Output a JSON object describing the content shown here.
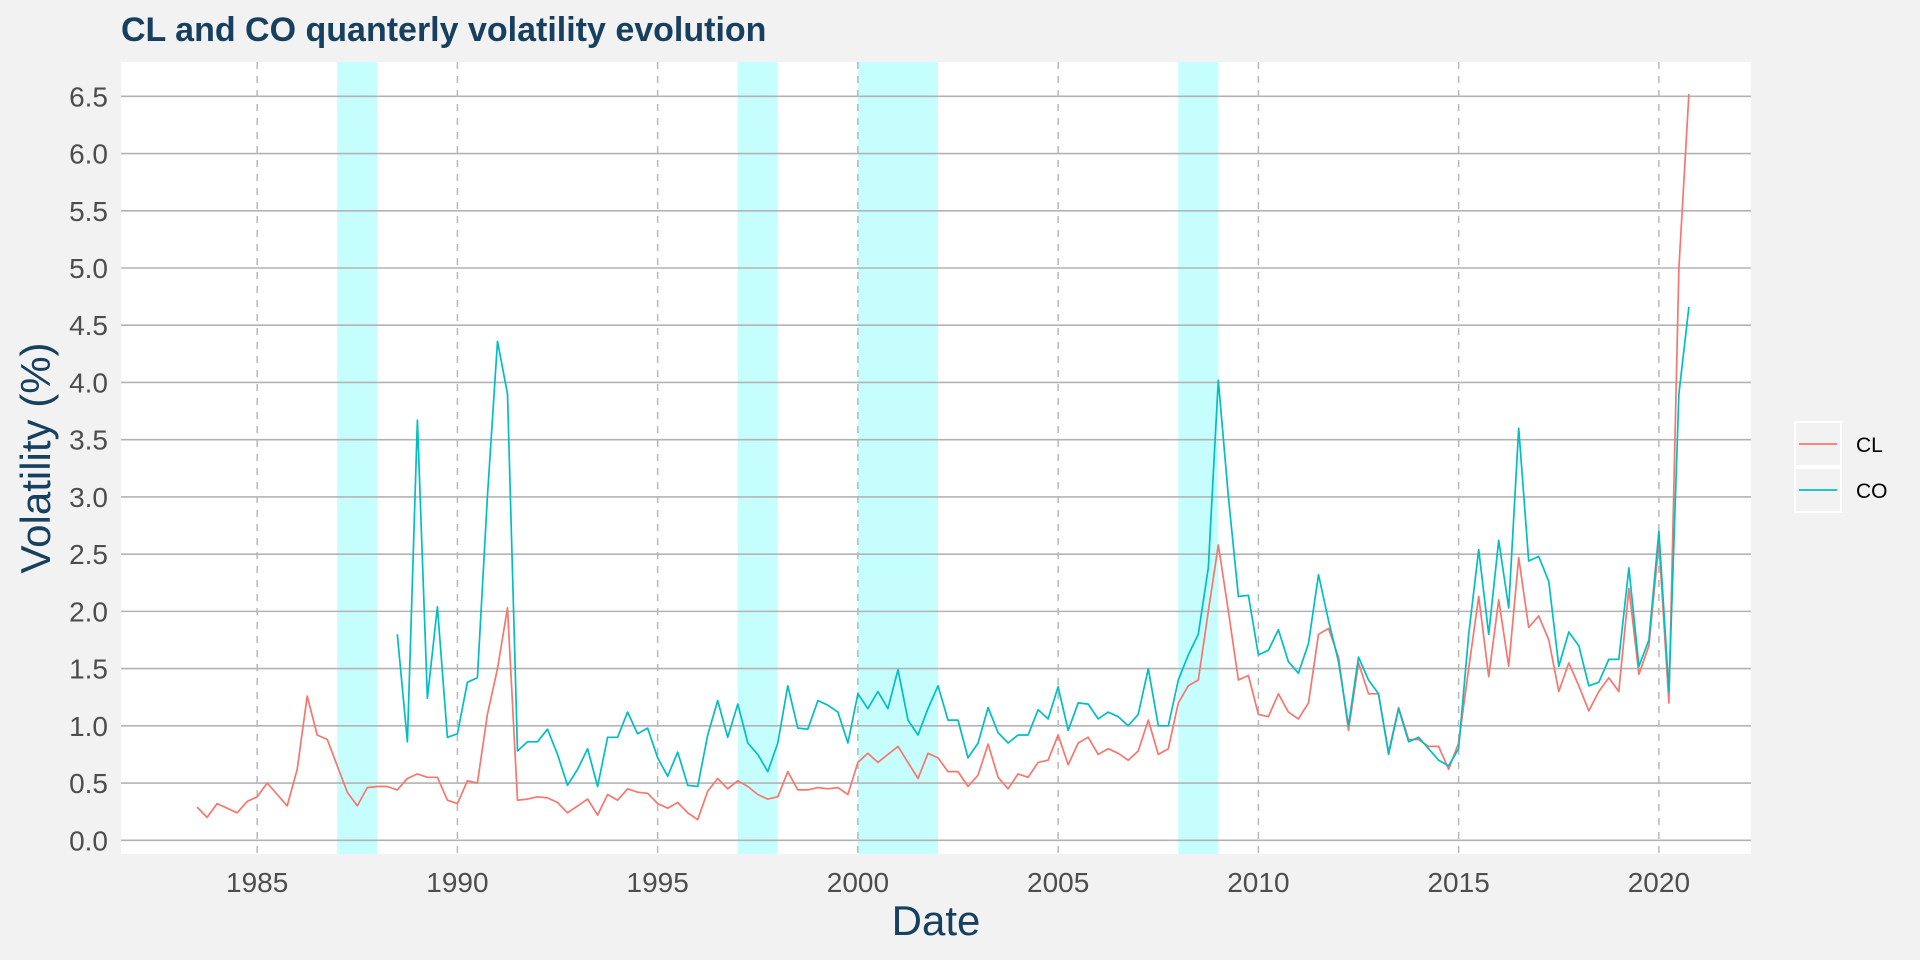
{
  "chart_data": {
    "type": "line",
    "title": "CL and CO quanterly volatility evolution",
    "xlabel": "Date",
    "ylabel": "Volatility (%)",
    "xlim": [
      1981.6,
      2022.3
    ],
    "ylim": [
      -0.12,
      6.8
    ],
    "x_ticks": [
      1985,
      1990,
      1995,
      2000,
      2005,
      2010,
      2015,
      2020
    ],
    "x_tick_labels": [
      "1985",
      "1990",
      "1995",
      "2000",
      "2005",
      "2010",
      "2015",
      "2020"
    ],
    "y_ticks": [
      0.0,
      0.5,
      1.0,
      1.5,
      2.0,
      2.5,
      3.0,
      3.5,
      4.0,
      4.5,
      5.0,
      5.5,
      6.0,
      6.5
    ],
    "y_tick_labels": [
      "0.0",
      "0.5",
      "1.0",
      "1.5",
      "2.0",
      "2.5",
      "3.0",
      "3.5",
      "4.0",
      "4.5",
      "5.0",
      "5.5",
      "6.0",
      "6.5"
    ],
    "grid": {
      "horizontal": true,
      "vertical_dashed_at_ticks": true
    },
    "shaded_periods": [
      [
        1987.0,
        1988.0
      ],
      [
        1997.0,
        1998.0
      ],
      [
        2000.0,
        2002.0
      ],
      [
        2008.0,
        2009.0
      ]
    ],
    "shade_color": "#c6fefe",
    "legend_position": "right",
    "series": [
      {
        "name": "CL",
        "color": "#f8766d",
        "points": [
          [
            1983.5,
            0.29
          ],
          [
            1983.75,
            0.2
          ],
          [
            1984.0,
            0.32
          ],
          [
            1984.25,
            0.28
          ],
          [
            1984.5,
            0.24
          ],
          [
            1984.75,
            0.34
          ],
          [
            1985.0,
            0.38
          ],
          [
            1985.25,
            0.5
          ],
          [
            1985.5,
            0.4
          ],
          [
            1985.75,
            0.3
          ],
          [
            1986.0,
            0.62
          ],
          [
            1986.25,
            1.26
          ],
          [
            1986.5,
            0.92
          ],
          [
            1986.75,
            0.88
          ],
          [
            1987.0,
            0.65
          ],
          [
            1987.25,
            0.42
          ],
          [
            1987.5,
            0.3
          ],
          [
            1987.75,
            0.46
          ],
          [
            1988.0,
            0.47
          ],
          [
            1988.25,
            0.47
          ],
          [
            1988.5,
            0.44
          ],
          [
            1988.75,
            0.54
          ],
          [
            1989.0,
            0.58
          ],
          [
            1989.25,
            0.55
          ],
          [
            1989.5,
            0.55
          ],
          [
            1989.75,
            0.35
          ],
          [
            1990.0,
            0.32
          ],
          [
            1990.25,
            0.52
          ],
          [
            1990.5,
            0.5
          ],
          [
            1990.75,
            1.1
          ],
          [
            1991.0,
            1.5
          ],
          [
            1991.25,
            2.03
          ],
          [
            1991.5,
            0.35
          ],
          [
            1991.75,
            0.36
          ],
          [
            1992.0,
            0.38
          ],
          [
            1992.25,
            0.37
          ],
          [
            1992.5,
            0.33
          ],
          [
            1992.75,
            0.24
          ],
          [
            1993.0,
            0.3
          ],
          [
            1993.25,
            0.36
          ],
          [
            1993.5,
            0.22
          ],
          [
            1993.75,
            0.4
          ],
          [
            1994.0,
            0.35
          ],
          [
            1994.25,
            0.45
          ],
          [
            1994.5,
            0.42
          ],
          [
            1994.75,
            0.41
          ],
          [
            1995.0,
            0.32
          ],
          [
            1995.25,
            0.28
          ],
          [
            1995.5,
            0.33
          ],
          [
            1995.75,
            0.24
          ],
          [
            1996.0,
            0.18
          ],
          [
            1996.25,
            0.43
          ],
          [
            1996.5,
            0.54
          ],
          [
            1996.75,
            0.45
          ],
          [
            1997.0,
            0.52
          ],
          [
            1997.25,
            0.47
          ],
          [
            1997.5,
            0.4
          ],
          [
            1997.75,
            0.36
          ],
          [
            1998.0,
            0.38
          ],
          [
            1998.25,
            0.6
          ],
          [
            1998.5,
            0.44
          ],
          [
            1998.75,
            0.44
          ],
          [
            1999.0,
            0.46
          ],
          [
            1999.25,
            0.45
          ],
          [
            1999.5,
            0.46
          ],
          [
            1999.75,
            0.4
          ],
          [
            2000.0,
            0.68
          ],
          [
            2000.25,
            0.76
          ],
          [
            2000.5,
            0.68
          ],
          [
            2000.75,
            0.75
          ],
          [
            2001.0,
            0.82
          ],
          [
            2001.25,
            0.68
          ],
          [
            2001.5,
            0.54
          ],
          [
            2001.75,
            0.76
          ],
          [
            2002.0,
            0.72
          ],
          [
            2002.25,
            0.6
          ],
          [
            2002.5,
            0.6
          ],
          [
            2002.75,
            0.47
          ],
          [
            2003.0,
            0.57
          ],
          [
            2003.25,
            0.84
          ],
          [
            2003.5,
            0.55
          ],
          [
            2003.75,
            0.45
          ],
          [
            2004.0,
            0.58
          ],
          [
            2004.25,
            0.55
          ],
          [
            2004.5,
            0.68
          ],
          [
            2004.75,
            0.7
          ],
          [
            2005.0,
            0.92
          ],
          [
            2005.25,
            0.66
          ],
          [
            2005.5,
            0.85
          ],
          [
            2005.75,
            0.9
          ],
          [
            2006.0,
            0.75
          ],
          [
            2006.25,
            0.8
          ],
          [
            2006.5,
            0.76
          ],
          [
            2006.75,
            0.7
          ],
          [
            2007.0,
            0.78
          ],
          [
            2007.25,
            1.05
          ],
          [
            2007.5,
            0.75
          ],
          [
            2007.75,
            0.8
          ],
          [
            2008.0,
            1.2
          ],
          [
            2008.25,
            1.35
          ],
          [
            2008.5,
            1.4
          ],
          [
            2008.75,
            2.0
          ],
          [
            2009.0,
            2.58
          ],
          [
            2009.25,
            2.0
          ],
          [
            2009.5,
            1.4
          ],
          [
            2009.75,
            1.44
          ],
          [
            2010.0,
            1.1
          ],
          [
            2010.25,
            1.08
          ],
          [
            2010.5,
            1.28
          ],
          [
            2010.75,
            1.12
          ],
          [
            2011.0,
            1.06
          ],
          [
            2011.25,
            1.2
          ],
          [
            2011.5,
            1.8
          ],
          [
            2011.75,
            1.85
          ],
          [
            2012.0,
            1.6
          ],
          [
            2012.25,
            0.96
          ],
          [
            2012.5,
            1.55
          ],
          [
            2012.75,
            1.28
          ],
          [
            2013.0,
            1.28
          ],
          [
            2013.25,
            0.77
          ],
          [
            2013.5,
            1.16
          ],
          [
            2013.75,
            0.88
          ],
          [
            2014.0,
            0.88
          ],
          [
            2014.25,
            0.82
          ],
          [
            2014.5,
            0.82
          ],
          [
            2014.75,
            0.62
          ],
          [
            2015.0,
            0.85
          ],
          [
            2015.25,
            1.5
          ],
          [
            2015.5,
            2.13
          ],
          [
            2015.75,
            1.43
          ],
          [
            2016.0,
            2.1
          ],
          [
            2016.25,
            1.52
          ],
          [
            2016.5,
            2.47
          ],
          [
            2016.75,
            1.86
          ],
          [
            2017.0,
            1.96
          ],
          [
            2017.25,
            1.75
          ],
          [
            2017.5,
            1.3
          ],
          [
            2017.75,
            1.55
          ],
          [
            2018.0,
            1.35
          ],
          [
            2018.25,
            1.13
          ],
          [
            2018.5,
            1.3
          ],
          [
            2018.75,
            1.42
          ],
          [
            2019.0,
            1.3
          ],
          [
            2019.25,
            2.2
          ],
          [
            2019.5,
            1.45
          ],
          [
            2019.75,
            1.7
          ],
          [
            2020.0,
            2.6
          ],
          [
            2020.25,
            1.2
          ],
          [
            2020.5,
            5.0
          ],
          [
            2020.75,
            6.52
          ]
        ]
      },
      {
        "name": "CO",
        "color": "#00bfc4",
        "points": [
          [
            1988.5,
            1.8
          ],
          [
            1988.75,
            0.86
          ],
          [
            1989.0,
            3.67
          ],
          [
            1989.25,
            1.24
          ],
          [
            1989.5,
            2.04
          ],
          [
            1989.75,
            0.9
          ],
          [
            1990.0,
            0.93
          ],
          [
            1990.25,
            1.38
          ],
          [
            1990.5,
            1.42
          ],
          [
            1990.75,
            3.0
          ],
          [
            1991.0,
            4.36
          ],
          [
            1991.25,
            3.9
          ],
          [
            1991.5,
            0.78
          ],
          [
            1991.75,
            0.86
          ],
          [
            1992.0,
            0.86
          ],
          [
            1992.25,
            0.97
          ],
          [
            1992.5,
            0.75
          ],
          [
            1992.75,
            0.48
          ],
          [
            1993.0,
            0.62
          ],
          [
            1993.25,
            0.8
          ],
          [
            1993.5,
            0.47
          ],
          [
            1993.75,
            0.9
          ],
          [
            1994.0,
            0.9
          ],
          [
            1994.25,
            1.12
          ],
          [
            1994.5,
            0.93
          ],
          [
            1994.75,
            0.98
          ],
          [
            1995.0,
            0.72
          ],
          [
            1995.25,
            0.56
          ],
          [
            1995.5,
            0.77
          ],
          [
            1995.75,
            0.48
          ],
          [
            1996.0,
            0.47
          ],
          [
            1996.25,
            0.92
          ],
          [
            1996.5,
            1.22
          ],
          [
            1996.75,
            0.9
          ],
          [
            1997.0,
            1.19
          ],
          [
            1997.25,
            0.85
          ],
          [
            1997.5,
            0.75
          ],
          [
            1997.75,
            0.6
          ],
          [
            1998.0,
            0.85
          ],
          [
            1998.25,
            1.35
          ],
          [
            1998.5,
            0.98
          ],
          [
            1998.75,
            0.97
          ],
          [
            1999.0,
            1.22
          ],
          [
            1999.25,
            1.18
          ],
          [
            1999.5,
            1.12
          ],
          [
            1999.75,
            0.85
          ],
          [
            2000.0,
            1.28
          ],
          [
            2000.25,
            1.15
          ],
          [
            2000.5,
            1.3
          ],
          [
            2000.75,
            1.15
          ],
          [
            2001.0,
            1.49
          ],
          [
            2001.25,
            1.05
          ],
          [
            2001.5,
            0.92
          ],
          [
            2001.75,
            1.15
          ],
          [
            2002.0,
            1.35
          ],
          [
            2002.25,
            1.05
          ],
          [
            2002.5,
            1.05
          ],
          [
            2002.75,
            0.72
          ],
          [
            2003.0,
            0.85
          ],
          [
            2003.25,
            1.16
          ],
          [
            2003.5,
            0.94
          ],
          [
            2003.75,
            0.85
          ],
          [
            2004.0,
            0.92
          ],
          [
            2004.25,
            0.92
          ],
          [
            2004.5,
            1.14
          ],
          [
            2004.75,
            1.06
          ],
          [
            2005.0,
            1.34
          ],
          [
            2005.25,
            0.96
          ],
          [
            2005.5,
            1.2
          ],
          [
            2005.75,
            1.19
          ],
          [
            2006.0,
            1.06
          ],
          [
            2006.25,
            1.12
          ],
          [
            2006.5,
            1.08
          ],
          [
            2006.75,
            1.0
          ],
          [
            2007.0,
            1.1
          ],
          [
            2007.25,
            1.5
          ],
          [
            2007.5,
            1.0
          ],
          [
            2007.75,
            1.0
          ],
          [
            2008.0,
            1.4
          ],
          [
            2008.25,
            1.62
          ],
          [
            2008.5,
            1.8
          ],
          [
            2008.75,
            2.38
          ],
          [
            2009.0,
            4.02
          ],
          [
            2009.25,
            3.0
          ],
          [
            2009.5,
            2.13
          ],
          [
            2009.75,
            2.14
          ],
          [
            2010.0,
            1.62
          ],
          [
            2010.25,
            1.66
          ],
          [
            2010.5,
            1.84
          ],
          [
            2010.75,
            1.56
          ],
          [
            2011.0,
            1.46
          ],
          [
            2011.25,
            1.72
          ],
          [
            2011.5,
            2.32
          ],
          [
            2011.75,
            1.92
          ],
          [
            2012.0,
            1.56
          ],
          [
            2012.25,
            1.0
          ],
          [
            2012.5,
            1.6
          ],
          [
            2012.75,
            1.4
          ],
          [
            2013.0,
            1.28
          ],
          [
            2013.25,
            0.75
          ],
          [
            2013.5,
            1.15
          ],
          [
            2013.75,
            0.86
          ],
          [
            2014.0,
            0.9
          ],
          [
            2014.25,
            0.8
          ],
          [
            2014.5,
            0.7
          ],
          [
            2014.75,
            0.65
          ],
          [
            2015.0,
            0.8
          ],
          [
            2015.25,
            1.8
          ],
          [
            2015.5,
            2.54
          ],
          [
            2015.75,
            1.8
          ],
          [
            2016.0,
            2.62
          ],
          [
            2016.25,
            2.03
          ],
          [
            2016.5,
            3.6
          ],
          [
            2016.75,
            2.44
          ],
          [
            2017.0,
            2.48
          ],
          [
            2017.25,
            2.26
          ],
          [
            2017.5,
            1.52
          ],
          [
            2017.75,
            1.82
          ],
          [
            2018.0,
            1.7
          ],
          [
            2018.25,
            1.35
          ],
          [
            2018.5,
            1.38
          ],
          [
            2018.75,
            1.58
          ],
          [
            2019.0,
            1.58
          ],
          [
            2019.25,
            2.38
          ],
          [
            2019.5,
            1.52
          ],
          [
            2019.75,
            1.75
          ],
          [
            2020.0,
            2.7
          ],
          [
            2020.25,
            1.3
          ],
          [
            2020.5,
            3.9
          ],
          [
            2020.75,
            4.66
          ]
        ]
      }
    ]
  }
}
